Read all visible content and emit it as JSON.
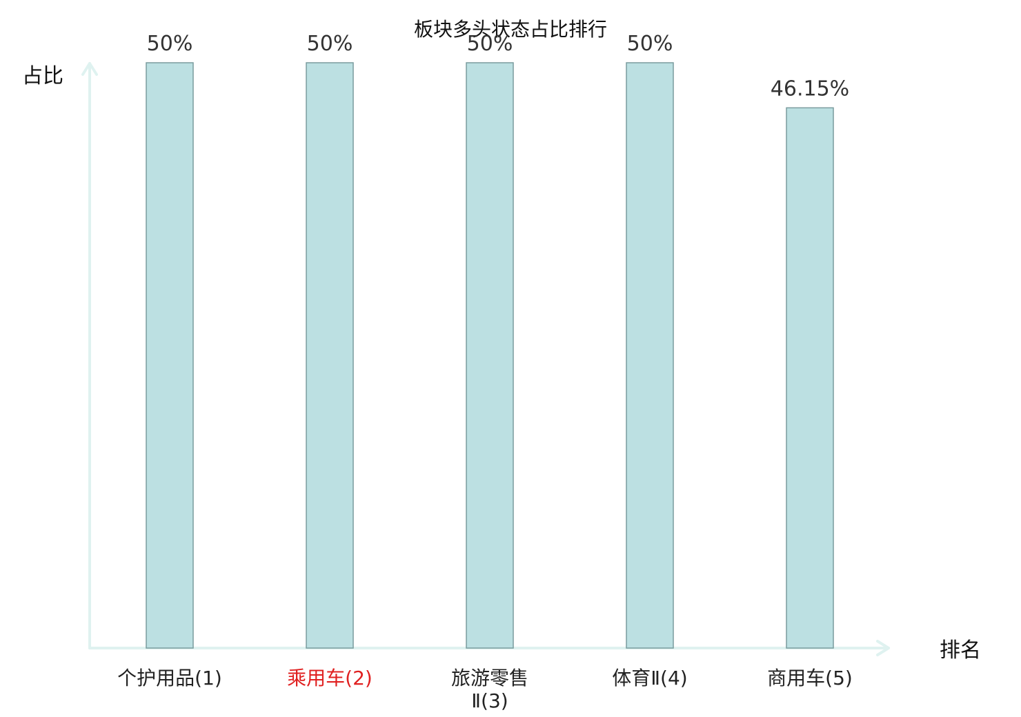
{
  "chart_data": {
    "type": "bar",
    "title": "板块多头状态占比排行",
    "xlabel": "排名",
    "ylabel": "占比",
    "ylim": [
      0,
      50
    ],
    "grid": false,
    "categories": [
      {
        "lines": [
          "个护用品(1)"
        ],
        "highlight": false
      },
      {
        "lines": [
          "乘用车(2)"
        ],
        "highlight": true
      },
      {
        "lines": [
          "旅游零售",
          "Ⅱ(3)"
        ],
        "highlight": false
      },
      {
        "lines": [
          "体育Ⅱ(4)"
        ],
        "highlight": false
      },
      {
        "lines": [
          "商用车(5)"
        ],
        "highlight": false
      }
    ],
    "values": [
      50,
      50,
      50,
      50,
      46.15
    ],
    "value_labels": [
      "50%",
      "50%",
      "50%",
      "50%",
      "46.15%"
    ],
    "colors": {
      "bar_fill": "#bce0e2",
      "bar_stroke": "#7a9c9e",
      "axis": "#dff2f0",
      "highlight_text": "#e02020"
    }
  }
}
